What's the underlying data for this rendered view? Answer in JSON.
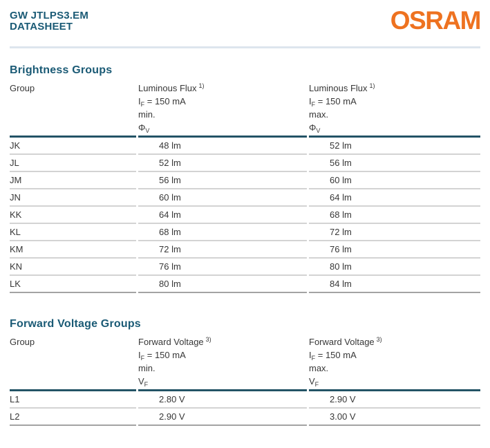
{
  "header": {
    "product_title": "GW JTLPS3.EM",
    "doc_type": "DATASHEET",
    "brand_logo": "OSRAM"
  },
  "colors": {
    "brand_orange": "#EE7220",
    "heading_teal": "#1A5A75",
    "table_header_rule": "#235366",
    "row_divider": "#D3D3D3",
    "table_bottom_rule": "#A3A3A3",
    "page_divider": "#DDE5EE",
    "body_text": "#373737"
  },
  "brightness_table": {
    "section_title": "Brightness Groups",
    "header": {
      "group_label": "Group",
      "min_col": {
        "quantity": "Luminous Flux",
        "footnote": "1)",
        "condition_base": "I",
        "condition_sub": "F",
        "condition_rest": " = 150 mA",
        "limit": "min.",
        "symbol_base": "Φ",
        "symbol_sub": "V"
      },
      "max_col": {
        "quantity": "Luminous Flux",
        "footnote": "1)",
        "condition_base": "I",
        "condition_sub": "F",
        "condition_rest": " = 150 mA",
        "limit": "max.",
        "symbol_base": "Φ",
        "symbol_sub": "V"
      }
    },
    "rows": [
      {
        "group": "JK",
        "min": "48 lm",
        "max": "52 lm"
      },
      {
        "group": "JL",
        "min": "52 lm",
        "max": "56 lm"
      },
      {
        "group": "JM",
        "min": "56 lm",
        "max": "60 lm"
      },
      {
        "group": "JN",
        "min": "60 lm",
        "max": "64 lm"
      },
      {
        "group": "KK",
        "min": "64 lm",
        "max": "68 lm"
      },
      {
        "group": "KL",
        "min": "68 lm",
        "max": "72 lm"
      },
      {
        "group": "KM",
        "min": "72 lm",
        "max": "76 lm"
      },
      {
        "group": "KN",
        "min": "76 lm",
        "max": "80 lm"
      },
      {
        "group": "LK",
        "min": "80 lm",
        "max": "84 lm"
      }
    ]
  },
  "forward_voltage_table": {
    "section_title": "Forward Voltage Groups",
    "header": {
      "group_label": "Group",
      "min_col": {
        "quantity": "Forward Voltage",
        "footnote": "3)",
        "condition_base": "I",
        "condition_sub": "F",
        "condition_rest": " = 150 mA",
        "limit": "min.",
        "symbol_base": "V",
        "symbol_sub": "F"
      },
      "max_col": {
        "quantity": "Forward Voltage",
        "footnote": "3)",
        "condition_base": "I",
        "condition_sub": "F",
        "condition_rest": " = 150 mA",
        "limit": "max.",
        "symbol_base": "V",
        "symbol_sub": "F"
      }
    },
    "rows": [
      {
        "group": "L1",
        "min": "2.80 V",
        "max": "2.90 V"
      },
      {
        "group": "L2",
        "min": "2.90 V",
        "max": "3.00 V"
      }
    ]
  }
}
